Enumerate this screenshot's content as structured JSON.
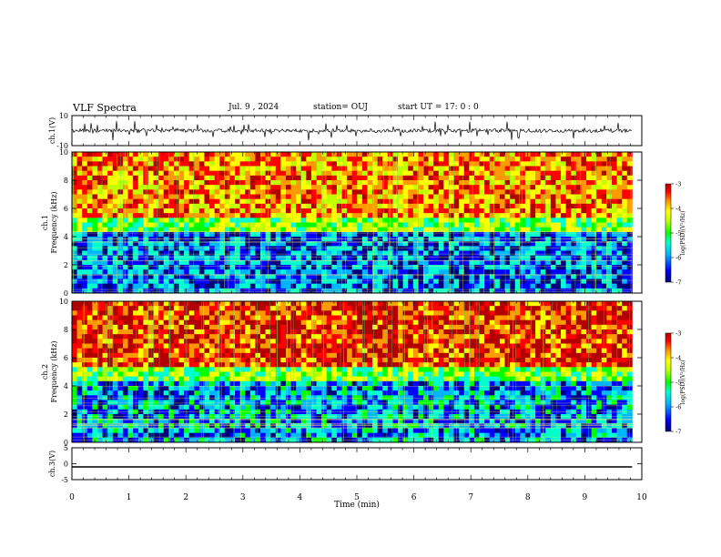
{
  "header": {
    "title": "VLF Spectra",
    "date": "Jul. 9 , 2024",
    "station": "station= OUJ",
    "start": "start UT = 17: 0 : 0"
  },
  "colors": {
    "colormap": [
      "#00007a",
      "#0000ff",
      "#00b4ff",
      "#00ffd0",
      "#00ff00",
      "#bfff00",
      "#ffff00",
      "#ff9900",
      "#ff0000",
      "#b30000"
    ]
  },
  "chart_data": [
    {
      "type": "line",
      "panel": "ch1-waveform",
      "ylabel": "ch.1(V)",
      "ylim": [
        -10,
        10
      ],
      "yticks": [
        "10",
        "-10"
      ],
      "xlim": [
        0,
        10
      ],
      "x": [
        0,
        9.83
      ],
      "y": [
        0,
        0
      ]
    },
    {
      "type": "heatmap",
      "panel": "ch1-spectrogram",
      "ylabel": "ch.1 Frequency (kHz)",
      "ylim": [
        0,
        10
      ],
      "yticks": [
        "0",
        "2",
        "4",
        "6",
        "8",
        "10"
      ],
      "xlim": [
        0,
        10
      ],
      "data_xmax": 9.83,
      "regions": [
        {
          "band": [
            0,
            4.2
          ],
          "level": -6.2
        },
        {
          "band": [
            4.2,
            5.5
          ],
          "level": -5.0
        },
        {
          "band": [
            5.5,
            10
          ],
          "level": -4.0
        }
      ],
      "colorbar": {
        "label": "log(PSD)(V²/Hz)",
        "range": [
          -7,
          -3
        ],
        "ticks": [
          "-3",
          "-4",
          "-5",
          "-6",
          "-7"
        ]
      }
    },
    {
      "type": "heatmap",
      "panel": "ch2-spectrogram",
      "ylabel": "ch.2 Frequency (kHz)",
      "ylim": [
        0,
        10
      ],
      "yticks": [
        "0",
        "2",
        "4",
        "6",
        "8",
        "10"
      ],
      "xlim": [
        0,
        10
      ],
      "data_xmax": 9.83,
      "regions": [
        {
          "band": [
            0,
            4.5
          ],
          "level": -6.0
        },
        {
          "band": [
            4.5,
            5.5
          ],
          "level": -5.0
        },
        {
          "band": [
            5.5,
            10
          ],
          "level": -3.6
        }
      ],
      "colorbar": {
        "label": "log(PSD)(V²/Hz)",
        "range": [
          -7,
          -3
        ],
        "ticks": [
          "-3",
          "-4",
          "-5",
          "-6",
          "-7"
        ]
      }
    },
    {
      "type": "line",
      "panel": "ch3-waveform",
      "ylabel": "ch.3(V)",
      "ylim": [
        -5,
        5
      ],
      "yticks": [
        "5",
        "0",
        "-5"
      ],
      "xlim": [
        0,
        10
      ],
      "xlabel": "Time (min)",
      "xticks": [
        "0",
        "1",
        "2",
        "3",
        "4",
        "5",
        "6",
        "7",
        "8",
        "9",
        "10"
      ],
      "x": [
        0,
        9.83
      ],
      "y": [
        -1,
        -1
      ]
    }
  ]
}
